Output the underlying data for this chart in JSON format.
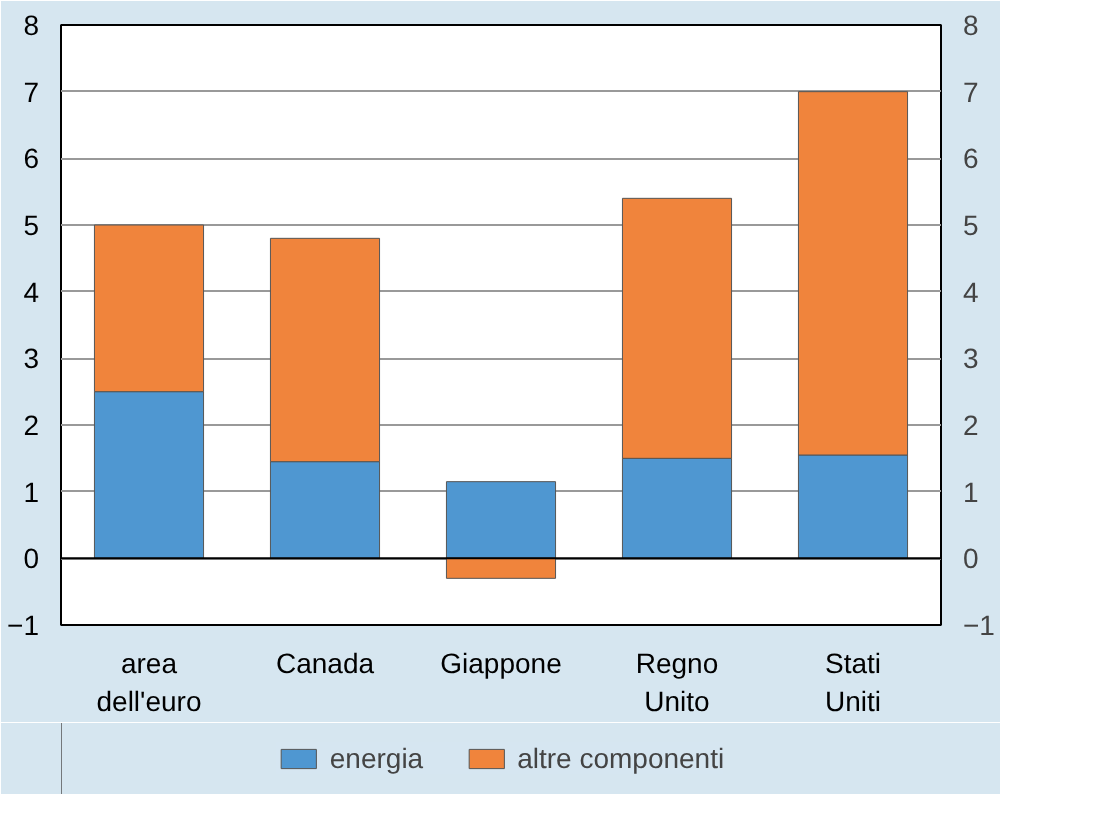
{
  "chart_data": {
    "type": "bar",
    "stacked": true,
    "categories": [
      "area\ndell'euro",
      "Canada",
      "Giappone",
      "Regno\nUnito",
      "Stati\nUniti"
    ],
    "series": [
      {
        "name": "energia",
        "color": "#4f97d1",
        "values": [
          2.5,
          1.45,
          1.15,
          1.5,
          1.55
        ]
      },
      {
        "name": "altre componenti",
        "color": "#f0843c",
        "values": [
          2.5,
          3.35,
          -0.3,
          3.9,
          5.45
        ]
      }
    ],
    "ylim": [
      -1,
      8
    ],
    "yticks": [
      -1,
      0,
      1,
      2,
      3,
      4,
      5,
      6,
      7,
      8
    ],
    "y2lim": [
      -1,
      8
    ],
    "y2ticks": [
      -1,
      0,
      1,
      2,
      3,
      4,
      5,
      6,
      7,
      8
    ],
    "grid": "y",
    "legend": "bottom"
  }
}
